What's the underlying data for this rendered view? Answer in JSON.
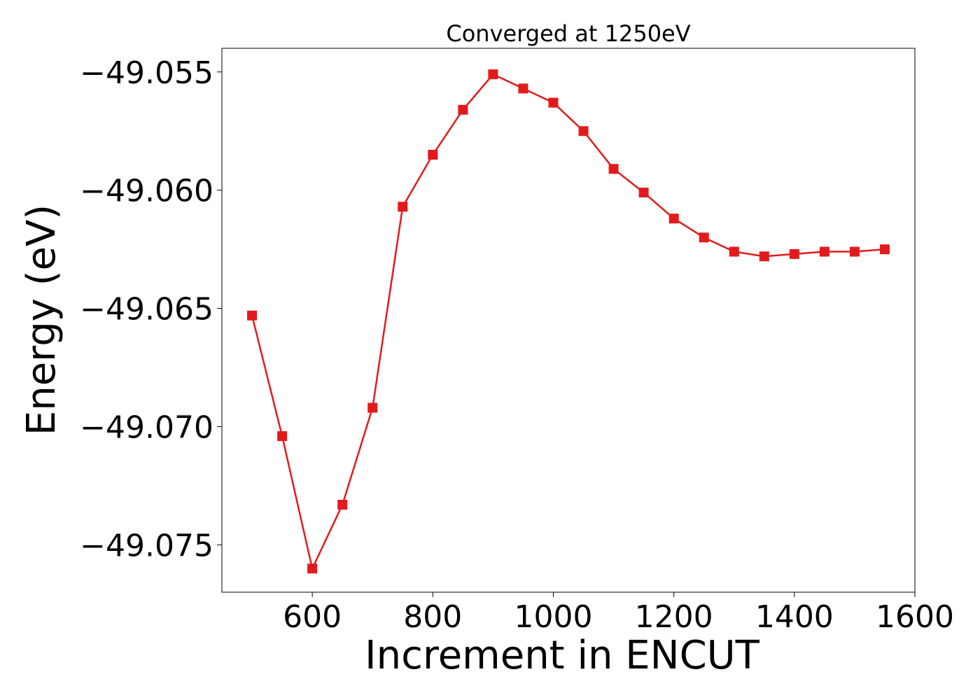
{
  "chart_data": {
    "type": "line",
    "title": "Converged at 1250eV",
    "xlabel": "Increment in ENCUT",
    "ylabel": "Energy (eV)",
    "xlim": [
      450,
      1600
    ],
    "ylim": [
      -49.077,
      -49.054
    ],
    "xticks": [
      600,
      800,
      1000,
      1200,
      1400,
      1600
    ],
    "xtick_labels": [
      "600",
      "800",
      "1000",
      "1200",
      "1400",
      "1600"
    ],
    "yticks": [
      -49.075,
      -49.07,
      -49.065,
      -49.06,
      -49.055
    ],
    "ytick_labels": [
      "−49.075",
      "−49.070",
      "−49.065",
      "−49.060",
      "−49.055"
    ],
    "grid": false,
    "series": [
      {
        "color": "#e31a1c",
        "marker": "square",
        "x": [
          500,
          550,
          600,
          650,
          700,
          750,
          800,
          850,
          900,
          950,
          1000,
          1050,
          1100,
          1150,
          1200,
          1250,
          1300,
          1350,
          1400,
          1450,
          1500,
          1550
        ],
        "y": [
          -49.0653,
          -49.0704,
          -49.076,
          -49.0733,
          -49.0692,
          -49.0607,
          -49.0585,
          -49.0566,
          -49.0551,
          -49.0557,
          -49.0563,
          -49.0575,
          -49.0591,
          -49.0601,
          -49.0612,
          -49.062,
          -49.0626,
          -49.0628,
          -49.0627,
          -49.0626,
          -49.0626,
          -49.0625
        ]
      }
    ]
  }
}
